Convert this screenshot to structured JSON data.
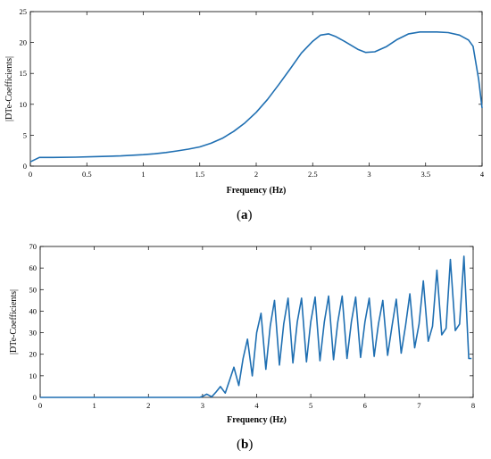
{
  "captions": {
    "a": "a",
    "b": "b"
  },
  "chart_data": [
    {
      "type": "line",
      "xlabel": "Frequency (Hz)",
      "ylabel": "|DTe-Coefficients|",
      "xlim": [
        0,
        4
      ],
      "ylim": [
        0,
        25
      ],
      "xticks": [
        "0",
        "0.5",
        "1",
        "1.5",
        "2",
        "2.5",
        "3",
        "3.5",
        "4"
      ],
      "yticks": [
        "0",
        "5",
        "10",
        "15",
        "20",
        "25"
      ],
      "color": "#1f6fb2",
      "series": [
        {
          "x": [
            0,
            0.08,
            0.2,
            0.4,
            0.6,
            0.8,
            1.0,
            1.1,
            1.2,
            1.3,
            1.4,
            1.5,
            1.6,
            1.7,
            1.8,
            1.9,
            2.0,
            2.1,
            2.2,
            2.3,
            2.4,
            2.5,
            2.57,
            2.64,
            2.7,
            2.78,
            2.9,
            2.97,
            3.05,
            3.15,
            3.25,
            3.35,
            3.45,
            3.6,
            3.7,
            3.8,
            3.88,
            3.92,
            3.97,
            4.0
          ],
          "y": [
            0.7,
            1.4,
            1.4,
            1.45,
            1.55,
            1.65,
            1.85,
            2.0,
            2.2,
            2.45,
            2.75,
            3.1,
            3.7,
            4.5,
            5.6,
            7.0,
            8.7,
            10.8,
            13.2,
            15.7,
            18.3,
            20.2,
            21.2,
            21.4,
            21.0,
            20.2,
            18.9,
            18.4,
            18.5,
            19.3,
            20.5,
            21.4,
            21.7,
            21.7,
            21.6,
            21.2,
            20.4,
            19.4,
            14.0,
            9.4
          ]
        }
      ]
    },
    {
      "type": "line",
      "xlabel": "Frequency (Hz)",
      "ylabel": "|DTe-Coefficients|",
      "xlim": [
        0,
        8
      ],
      "ylim": [
        0,
        70
      ],
      "xticks": [
        "0",
        "1",
        "2",
        "3",
        "4",
        "5",
        "6",
        "7",
        "8"
      ],
      "yticks": [
        "0",
        "10",
        "20",
        "30",
        "40",
        "50",
        "60",
        "70"
      ],
      "color": "#1f6fb2",
      "series": [
        {
          "x": [
            0,
            2.95,
            3.0,
            3.08,
            3.17,
            3.25,
            3.33,
            3.42,
            3.5,
            3.58,
            3.67,
            3.75,
            3.83,
            3.92,
            4.0,
            4.08,
            4.17,
            4.25,
            4.33,
            4.42,
            4.5,
            4.58,
            4.67,
            4.75,
            4.83,
            4.92,
            5.0,
            5.08,
            5.17,
            5.25,
            5.33,
            5.42,
            5.5,
            5.58,
            5.67,
            5.75,
            5.83,
            5.92,
            6.0,
            6.08,
            6.17,
            6.25,
            6.33,
            6.42,
            6.5,
            6.58,
            6.67,
            6.75,
            6.83,
            6.92,
            7.0,
            7.08,
            7.17,
            7.25,
            7.33,
            7.42,
            7.5,
            7.58,
            7.67,
            7.75,
            7.83,
            7.92,
            7.97
          ],
          "y": [
            0,
            0,
            0.5,
            1.5,
            0.3,
            2.5,
            5.0,
            2.0,
            8.0,
            14.0,
            5.5,
            18.0,
            27.0,
            10.0,
            30.0,
            39.0,
            13.0,
            33.0,
            45.0,
            15.0,
            34.0,
            46.0,
            16.0,
            35.0,
            46.0,
            16.5,
            35.0,
            46.5,
            17.0,
            35.0,
            47.0,
            17.5,
            35.0,
            47.0,
            18.0,
            35.0,
            46.5,
            18.5,
            35.0,
            46.0,
            19.0,
            34.0,
            45.0,
            19.5,
            33.0,
            45.5,
            20.5,
            33.0,
            48.0,
            23.0,
            34.0,
            54.0,
            26.0,
            33.0,
            59.0,
            29.0,
            32.0,
            64.0,
            31.0,
            34.0,
            65.5,
            18.0,
            18.0
          ]
        }
      ]
    }
  ]
}
